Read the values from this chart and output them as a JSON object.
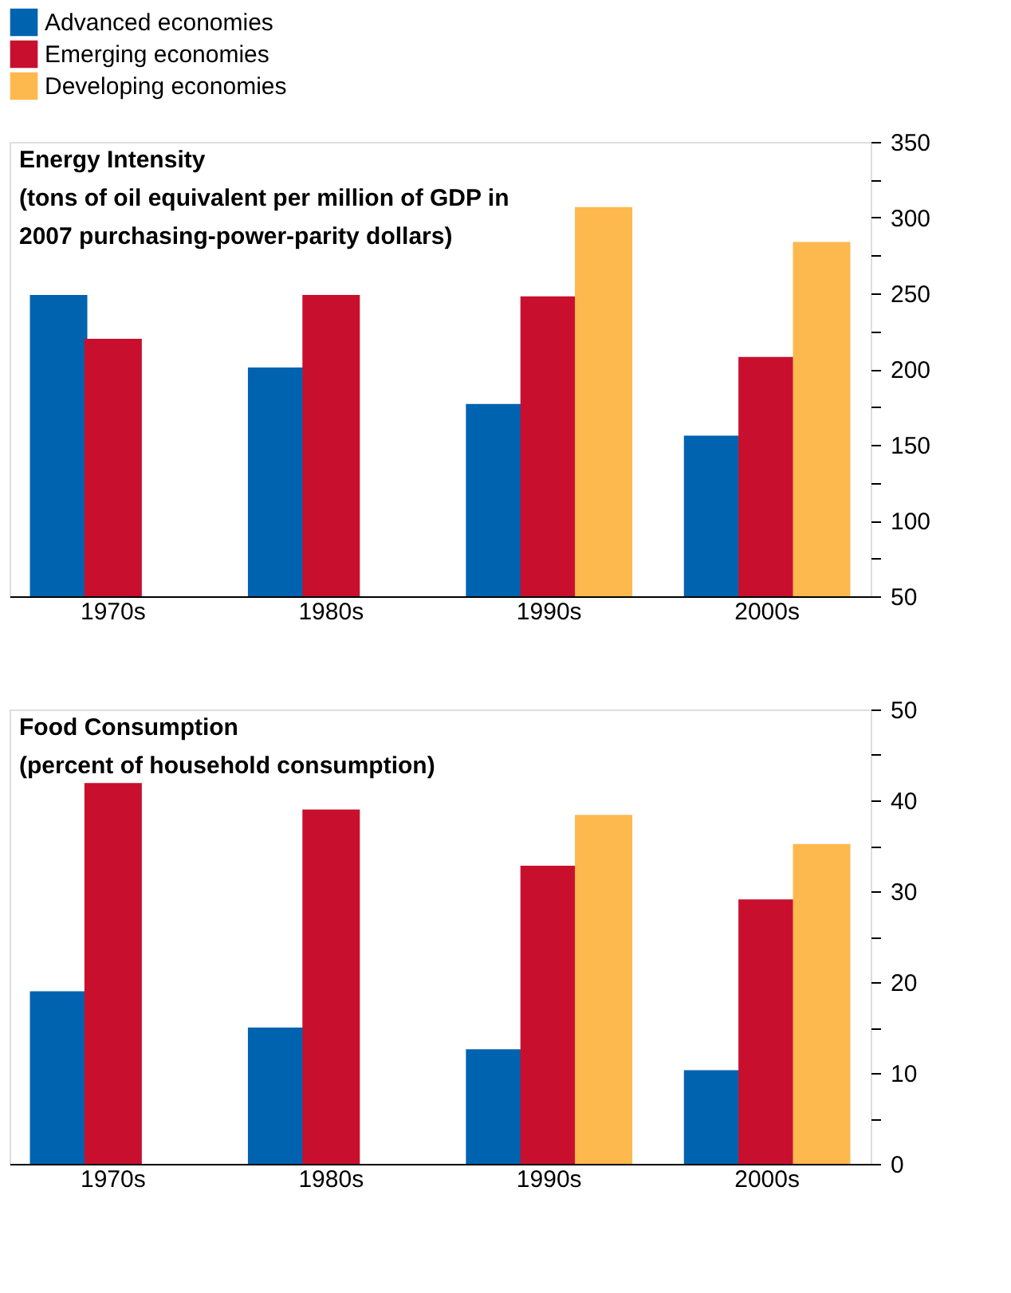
{
  "chart_data": [
    {
      "type": "bar",
      "title": "Energy Intensity",
      "subtitle": "(tons of oil equivalent per million of GDP in 2007 purchasing-power-parity dollars)",
      "categories": [
        "1970s",
        "1980s",
        "1990s",
        "2000s"
      ],
      "series": [
        {
          "name": "Advanced economies",
          "color": "#0063b0",
          "values": [
            249,
            201,
            177,
            156
          ]
        },
        {
          "name": "Emerging economies",
          "color": "#c8102e",
          "values": [
            220,
            249,
            248,
            208
          ]
        },
        {
          "name": "Developing economies",
          "color": "#fdb94d",
          "values": [
            null,
            null,
            307,
            284
          ]
        }
      ],
      "ylim": [
        50,
        350
      ],
      "yticks": [
        50,
        {
          "value": 75,
          "label": null
        },
        100,
        {
          "value": 125,
          "label": null
        },
        150,
        {
          "value": 175,
          "label": null
        },
        200,
        {
          "value": 225,
          "label": null
        },
        250,
        {
          "value": 275,
          "label": null
        },
        300,
        {
          "value": 325,
          "label": null
        },
        350
      ],
      "legend": "top",
      "grid": false
    },
    {
      "type": "bar",
      "title": "Food Consumption",
      "subtitle": "(percent of household consumption)",
      "categories": [
        "1970s",
        "1980s",
        "1990s",
        "2000s"
      ],
      "series": [
        {
          "name": "Advanced economies",
          "color": "#0063b0",
          "values": [
            19.0,
            15.0,
            12.6,
            10.3
          ]
        },
        {
          "name": "Emerging economies",
          "color": "#c8102e",
          "values": [
            41.9,
            39.0,
            32.8,
            29.1
          ]
        },
        {
          "name": "Developing economies",
          "color": "#fdb94d",
          "values": [
            null,
            null,
            38.4,
            35.2
          ]
        }
      ],
      "ylim": [
        0,
        50
      ],
      "yticks": [
        0,
        {
          "value": 5,
          "label": null
        },
        10,
        {
          "value": 15,
          "label": null
        },
        20,
        {
          "value": 25,
          "label": null
        },
        30,
        {
          "value": 35,
          "label": null
        },
        40,
        {
          "value": 45,
          "label": null
        },
        50
      ],
      "grid": false
    }
  ]
}
